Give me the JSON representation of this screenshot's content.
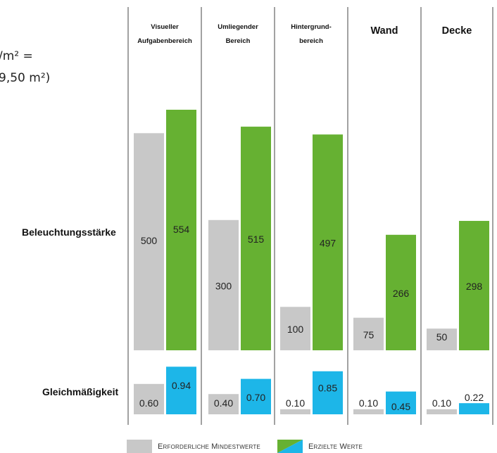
{
  "header_fragment": {
    "line1": "/m² =",
    "line2": "9,50 m²)"
  },
  "row_labels": {
    "illuminance": "Beleuchtungsstärke",
    "uniformity": "Gleichmäßigkeit"
  },
  "legend": {
    "required": "Erforderliche Mindestwerte",
    "achieved": "Erzielte Werte"
  },
  "colors": {
    "required": "#c8c8c8",
    "achieved_illuminance": "#66b132",
    "achieved_uniformity": "#1db6e8",
    "divider": "#444444"
  },
  "chart_data": [
    {
      "type": "bar",
      "categories": [
        "Visueller Aufgabenbereich",
        "Umliegender Bereich",
        "Hintergrundbereich",
        "Wand",
        "Decke"
      ],
      "category_headers": [
        {
          "lines": [
            "Visueller",
            "Aufgabenbereich"
          ],
          "style": "small"
        },
        {
          "lines": [
            "Umliegender",
            "Bereich"
          ],
          "style": "small"
        },
        {
          "lines": [
            "Hintergrund-",
            "bereich"
          ],
          "style": "small"
        },
        {
          "lines": [
            "Wand"
          ],
          "style": "large"
        },
        {
          "lines": [
            "Decke"
          ],
          "style": "large"
        }
      ],
      "series": [
        {
          "name": "Erforderliche Mindestwerte",
          "values": [
            500,
            300,
            100,
            75,
            50
          ]
        },
        {
          "name": "Erzielte Werte",
          "values": [
            554,
            515,
            497,
            266,
            298
          ]
        }
      ],
      "data_labels": {
        "required": [
          "500",
          "300",
          "100",
          "75",
          "50"
        ],
        "achieved": [
          "554",
          "515",
          "497",
          "266",
          "298"
        ]
      },
      "ylim": [
        0,
        554
      ]
    },
    {
      "type": "bar",
      "categories": [
        "Visueller Aufgabenbereich",
        "Umliegender Bereich",
        "Hintergrundbereich",
        "Wand",
        "Decke"
      ],
      "series": [
        {
          "name": "Erforderliche Mindestwerte",
          "values": [
            0.6,
            0.4,
            0.1,
            0.1,
            0.1
          ]
        },
        {
          "name": "Erzielte Werte",
          "values": [
            0.94,
            0.7,
            0.85,
            0.45,
            0.22
          ]
        }
      ],
      "data_labels": {
        "required": [
          "0.60",
          "0.40",
          "0.10",
          "0.10",
          "0.10"
        ],
        "achieved": [
          "0.94",
          "0.70",
          "0.85",
          "0.45",
          "0.22"
        ]
      },
      "ylim": [
        0,
        1.0
      ]
    }
  ]
}
